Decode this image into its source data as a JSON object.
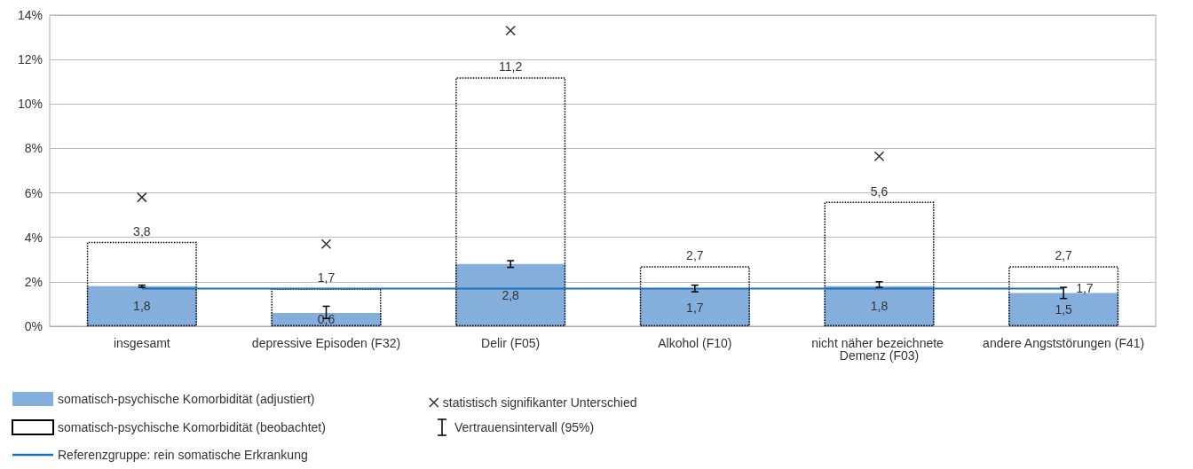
{
  "chart_data": {
    "type": "bar",
    "categories": [
      "insgesamt",
      "depressive Episoden (F32)",
      "Delir (F05)",
      "Alkohol (F10)",
      "nicht näher bezeichnete Demenz (F03)",
      "andere Angststörungen (F41)"
    ],
    "series": [
      {
        "name": "somatisch-psychische Komorbidität (adjustiert)",
        "color": "#84aedc",
        "values": [
          1.8,
          0.6,
          2.8,
          1.7,
          1.8,
          1.5
        ],
        "value_labels": [
          "1,8",
          "0,6",
          "2,8",
          "1,7",
          "1,8",
          "1,5"
        ],
        "errors": [
          [
            1.75,
            1.85
          ],
          [
            0.35,
            0.9
          ],
          [
            2.65,
            2.95
          ],
          [
            1.55,
            1.85
          ],
          [
            1.75,
            2.0
          ],
          [
            1.25,
            1.75
          ]
        ]
      },
      {
        "name": "somatisch-psychische Komorbidität (beobachtet)",
        "color": "#000000",
        "line_style": "dotted",
        "values": [
          3.8,
          1.7,
          11.2,
          2.7,
          5.6,
          2.7
        ],
        "value_labels": [
          "3,8",
          "1,7",
          "11,2",
          "2,7",
          "5,6",
          "2,7"
        ]
      },
      {
        "name": "Referenzgruppe: rein somatische Erkrankung",
        "type": "line",
        "color": "#1f6fb5",
        "values": [
          1.7,
          1.7,
          1.7,
          1.7,
          1.7,
          1.7
        ],
        "value_labels": [
          null,
          null,
          null,
          null,
          null,
          "1,7"
        ]
      },
      {
        "name": "statistisch signifikanter Unterschied",
        "type": "scatter",
        "color": "#000000",
        "marker": "cross",
        "x": [
          "insgesamt",
          "depressive Episoden (F32)",
          "Delir (F05)",
          "Alkohol (F10)",
          "nicht näher bezeichnete Demenz (F03)",
          "andere Angststörungen (F41)"
        ],
        "values": [
          5.8,
          3.7,
          13.3,
          null,
          7.65,
          null
        ]
      }
    ],
    "ylim": [
      0,
      14
    ],
    "yticks": [
      {
        "value": 0,
        "label": "0%"
      },
      {
        "value": 2,
        "label": "2%"
      },
      {
        "value": 4,
        "label": "4%"
      },
      {
        "value": 6,
        "label": "6%"
      },
      {
        "value": 8,
        "label": "8%"
      },
      {
        "value": 10,
        "label": "10%"
      },
      {
        "value": 12,
        "label": "12%"
      },
      {
        "value": 14,
        "label": "14%"
      }
    ],
    "grid": "y",
    "legend": "bottom left",
    "annotations": [
      "Vertrauensintervall (95%)"
    ]
  }
}
